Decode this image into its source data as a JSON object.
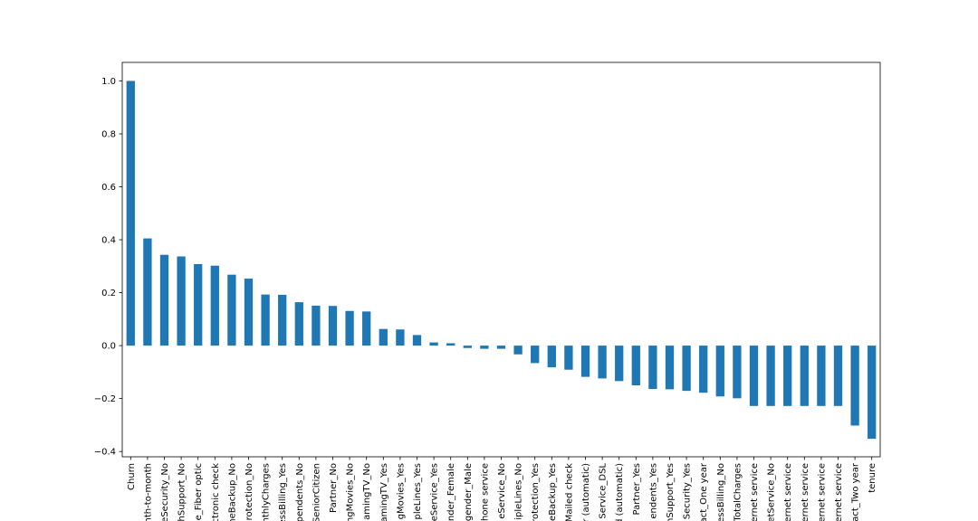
{
  "chart_data": {
    "type": "bar",
    "title": "",
    "xlabel": "",
    "ylabel": "",
    "ylim": [
      -0.42,
      1.07
    ],
    "yticks": [
      -0.4,
      -0.2,
      0.0,
      0.2,
      0.4,
      0.6,
      0.8,
      1.0
    ],
    "ytick_labels": [
      "−0.4",
      "−0.2",
      "0.0",
      "0.2",
      "0.4",
      "0.6",
      "0.8",
      "1.0"
    ],
    "bar_color": "#1f77b4",
    "grid": false,
    "categories": [
      "Churn",
      "nth-to-month",
      "eSecurity_No",
      "hSupport_No",
      "e_Fiber optic",
      "ctronic check",
      "neBackup_No",
      "rotection_No",
      "onthlyCharges",
      "essBilling_Yes",
      "pendents_No",
      "SeniorCitizen",
      "Partner_No",
      "ngMovies_No",
      "amingTV_No",
      "amingTV_Yes",
      "gMovies_Yes",
      "pleLines_Yes",
      "eService_Yes",
      "nder_Female",
      "gender_Male",
      "hone service",
      "eService_No",
      "ipleLines_No",
      "rotection_Yes",
      "eBackup_Yes",
      "Mailed check",
      "r (automatic)",
      "Service_DSL",
      "d (automatic)",
      "Partner_Yes",
      "endents_Yes",
      "hSupport_Yes",
      "Security_Yes",
      "act_One year",
      "essBilling_No",
      "TotalCharges",
      "ernet service",
      "etService_No",
      "ernet service",
      "ernet service",
      "ernet service",
      "ernet service",
      "act_Two year",
      "tenure"
    ],
    "values": [
      1.0,
      0.405,
      0.343,
      0.337,
      0.308,
      0.302,
      0.268,
      0.253,
      0.193,
      0.192,
      0.164,
      0.151,
      0.15,
      0.131,
      0.129,
      0.063,
      0.061,
      0.04,
      0.012,
      0.009,
      -0.009,
      -0.012,
      -0.012,
      -0.033,
      -0.066,
      -0.082,
      -0.091,
      -0.118,
      -0.124,
      -0.134,
      -0.15,
      -0.164,
      -0.165,
      -0.171,
      -0.178,
      -0.192,
      -0.199,
      -0.228,
      -0.228,
      -0.228,
      -0.228,
      -0.228,
      -0.228,
      -0.302,
      -0.352
    ]
  }
}
